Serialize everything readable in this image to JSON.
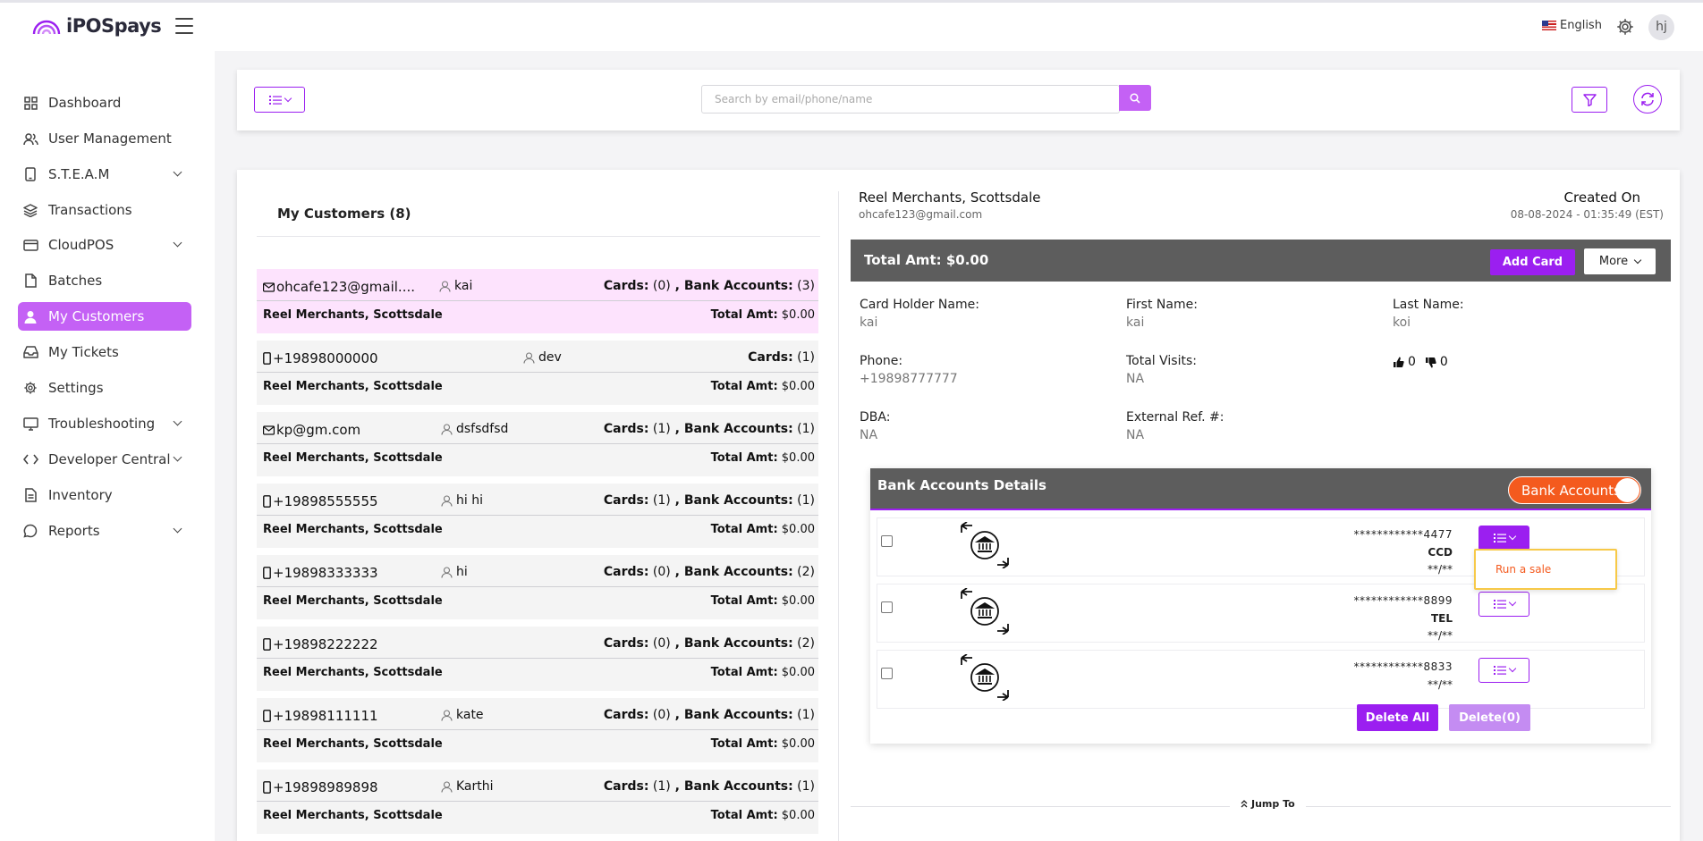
{
  "app": {
    "name": "iPOSpays"
  },
  "header": {
    "language": "English",
    "avatar_initials": "hj"
  },
  "sidebar": {
    "items": [
      {
        "label": "Dashboard",
        "icon": "grid-icon",
        "expandable": false,
        "active": false
      },
      {
        "label": "User Management",
        "icon": "users-icon",
        "expandable": false,
        "active": false
      },
      {
        "label": "S.T.E.A.M",
        "icon": "device-icon",
        "expandable": true,
        "active": false
      },
      {
        "label": "Transactions",
        "icon": "layers-icon",
        "expandable": false,
        "active": false
      },
      {
        "label": "CloudPOS",
        "icon": "card-icon",
        "expandable": true,
        "active": false
      },
      {
        "label": "Batches",
        "icon": "file-icon",
        "expandable": false,
        "active": false
      },
      {
        "label": "My Customers",
        "icon": "user-icon",
        "expandable": false,
        "active": true
      },
      {
        "label": "My Tickets",
        "icon": "inbox-icon",
        "expandable": false,
        "active": false
      },
      {
        "label": "Settings",
        "icon": "gear-icon",
        "expandable": false,
        "active": false
      },
      {
        "label": "Troubleshooting",
        "icon": "monitor-icon",
        "expandable": true,
        "active": false
      },
      {
        "label": "Developer Central",
        "icon": "code-icon",
        "expandable": true,
        "active": false
      },
      {
        "label": "Inventory",
        "icon": "document-icon",
        "expandable": false,
        "active": false
      },
      {
        "label": "Reports",
        "icon": "chat-icon",
        "expandable": true,
        "active": false
      }
    ]
  },
  "search": {
    "placeholder": "Search by email/phone/name",
    "value": ""
  },
  "customers": {
    "title": "My Customers (8)",
    "list": [
      {
        "contact": "ohcafe123@gmail....",
        "contact_type": "email",
        "name": "kai",
        "counts_label_cards": "Cards:",
        "cards": " (0)",
        "counts_label_bank": " , Bank Accounts:",
        "bank": " (3)",
        "merchant": "Reel Merchants, Scottsdale",
        "total_label": "Total Amt:",
        "total": " $0.00",
        "selected": true
      },
      {
        "contact": "+19898000000",
        "contact_type": "phone",
        "name": "dev",
        "counts_label_cards": "Cards:",
        "cards": " (1)",
        "counts_label_bank": "",
        "bank": "",
        "merchant": "Reel Merchants, Scottsdale",
        "total_label": "Total Amt:",
        "total": " $0.00",
        "selected": false
      },
      {
        "contact": "kp@gm.com",
        "contact_type": "email",
        "name": "dsfsdfsd",
        "counts_label_cards": "Cards:",
        "cards": " (1)",
        "counts_label_bank": " , Bank Accounts:",
        "bank": " (1)",
        "merchant": "Reel Merchants, Scottsdale",
        "total_label": "Total Amt:",
        "total": " $0.00",
        "selected": false
      },
      {
        "contact": "+19898555555",
        "contact_type": "phone",
        "name": "hi hi",
        "counts_label_cards": "Cards:",
        "cards": " (1)",
        "counts_label_bank": " , Bank Accounts:",
        "bank": " (1)",
        "merchant": "Reel Merchants, Scottsdale",
        "total_label": "Total Amt:",
        "total": " $0.00",
        "selected": false
      },
      {
        "contact": "+19898333333",
        "contact_type": "phone",
        "name": "hi",
        "counts_label_cards": "Cards:",
        "cards": " (0)",
        "counts_label_bank": " , Bank Accounts:",
        "bank": " (2)",
        "merchant": "Reel Merchants, Scottsdale",
        "total_label": "Total Amt:",
        "total": " $0.00",
        "selected": false
      },
      {
        "contact": "+19898222222",
        "contact_type": "phone",
        "name": "",
        "counts_label_cards": "Cards:",
        "cards": " (0)",
        "counts_label_bank": " , Bank Accounts:",
        "bank": " (2)",
        "merchant": "Reel Merchants, Scottsdale",
        "total_label": "Total Amt:",
        "total": " $0.00",
        "selected": false
      },
      {
        "contact": "+19898111111",
        "contact_type": "phone",
        "name": "kate",
        "counts_label_cards": "Cards:",
        "cards": " (0)",
        "counts_label_bank": " , Bank Accounts:",
        "bank": " (1)",
        "merchant": "Reel Merchants, Scottsdale",
        "total_label": "Total Amt:",
        "total": " $0.00",
        "selected": false
      },
      {
        "contact": "+19898989898",
        "contact_type": "phone",
        "name": "Karthi",
        "counts_label_cards": "Cards:",
        "cards": " (1)",
        "counts_label_bank": " , Bank Accounts:",
        "bank": " (1)",
        "merchant": "Reel Merchants, Scottsdale",
        "total_label": "Total Amt:",
        "total": " $0.00",
        "selected": false
      }
    ]
  },
  "detail": {
    "merchant": "Reel Merchants, Scottsdale",
    "email": "ohcafe123@gmail.com",
    "created_label": "Created On",
    "created_date": "08-08-2024 - 01:35:49 (EST)",
    "total_label": "Total Amt: $0.00",
    "add_card_label": "Add Card",
    "more_label": "More",
    "fields": {
      "card_holder_label": "Card Holder Name:",
      "card_holder": "kai",
      "first_name_label": "First Name:",
      "first_name": "kai",
      "last_name_label": "Last Name:",
      "last_name": "koi",
      "phone_label": "Phone:",
      "phone": "+19898777777",
      "visits_label": "Total Visits:",
      "visits": "NA",
      "likes": "0",
      "dislikes": "0",
      "dba_label": "DBA:",
      "dba": "NA",
      "ext_ref_label": "External Ref. #:",
      "ext_ref": "NA"
    },
    "bank_section": {
      "title": "Bank Accounts Details",
      "toggle_label": "Bank Accounts",
      "accounts": [
        {
          "number": "************4477",
          "type": "CCD",
          "expiry": "**/**"
        },
        {
          "number": "************8899",
          "type": "TEL",
          "expiry": "**/**"
        },
        {
          "number": "************8833",
          "type": "",
          "expiry": "**/**"
        }
      ],
      "dropdown_item": "Run a sale",
      "delete_all_label": "Delete All",
      "delete_selected_label": "Delete(0)"
    },
    "jump_to_label": "Jump To"
  },
  "colors": {
    "accent": "#9b1ff0",
    "active_nav": "#c461f5",
    "orange": "#f45a1e",
    "selected_row": "#fde3fd",
    "bar": "#5d5d5d"
  }
}
